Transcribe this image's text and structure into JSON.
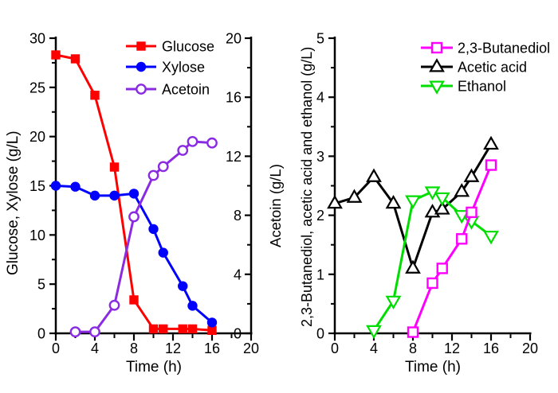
{
  "figure": {
    "background": "#ffffff",
    "axis_color": "#000000"
  },
  "chart_data": [
    {
      "type": "line",
      "panel": "left",
      "title": "",
      "xlabel": "Time (h)",
      "ylabel_left": "Glucose, Xylose (g/L)",
      "ylabel_right": "Acetoin (g/L)",
      "xlim": [
        0,
        20
      ],
      "xticks": [
        0,
        4,
        8,
        12,
        16,
        20
      ],
      "xminor_step": 2,
      "ylim_left": [
        0,
        30
      ],
      "yticks_left": [
        0,
        5,
        10,
        15,
        20,
        25,
        30
      ],
      "yminor_step_left": 2.5,
      "ylim_right": [
        0,
        20
      ],
      "yticks_right": [
        0,
        4,
        8,
        12,
        16,
        20
      ],
      "yminor_step_right": 2,
      "grid": false,
      "legend_position": "top-center-inside",
      "legend_items": [
        "Glucose",
        "Xylose",
        "Acetoin"
      ],
      "series": [
        {
          "name": "Glucose",
          "color": "#FF0000",
          "marker": "filled-square",
          "y_axis": "left",
          "x": [
            0,
            2,
            4,
            6,
            8,
            10,
            11,
            13,
            14,
            16
          ],
          "y": [
            28.3,
            27.9,
            24.2,
            16.9,
            3.4,
            0.45,
            0.45,
            0.45,
            0.45,
            0.3
          ]
        },
        {
          "name": "Xylose",
          "color": "#0000FF",
          "marker": "filled-circle",
          "y_axis": "left",
          "x": [
            0,
            2,
            4,
            6,
            8,
            10,
            11,
            13,
            14,
            16
          ],
          "y": [
            15.0,
            14.9,
            14.0,
            14.0,
            14.2,
            10.6,
            8.2,
            4.8,
            2.8,
            1.1
          ]
        },
        {
          "name": "Acetoin",
          "color": "#8A2BE2",
          "marker": "open-circle",
          "y_axis": "right",
          "x": [
            2,
            4,
            6,
            8,
            10,
            11,
            13,
            14,
            16
          ],
          "y": [
            0.1,
            0.1,
            1.9,
            7.9,
            10.7,
            11.3,
            12.4,
            13.0,
            12.9
          ]
        }
      ]
    },
    {
      "type": "line",
      "panel": "right",
      "title": "",
      "xlabel": "Time (h)",
      "ylabel": "2,3-Butanediol, acetic acid and ethanol (g/L)",
      "xlim": [
        0,
        20
      ],
      "xticks": [
        0,
        4,
        8,
        12,
        16,
        20
      ],
      "xminor_step": 2,
      "ylim": [
        0,
        5
      ],
      "yticks": [
        0,
        1,
        2,
        3,
        4,
        5
      ],
      "yminor_step": 0.5,
      "grid": false,
      "legend_position": "top-right-inside",
      "legend_items": [
        "2,3-Butanediol",
        "Acetic acid",
        "Ethanol"
      ],
      "series": [
        {
          "name": "2,3-Butanediol",
          "color": "#FF00FF",
          "marker": "open-square",
          "y_axis": "left",
          "x": [
            8,
            10,
            11,
            13,
            14,
            16
          ],
          "y": [
            0.02,
            0.85,
            1.1,
            1.6,
            2.05,
            2.85
          ]
        },
        {
          "name": "Acetic acid",
          "color": "#000000",
          "marker": "open-triangle-up",
          "y_axis": "left",
          "x": [
            0,
            2,
            4,
            6,
            8,
            10,
            11,
            13,
            14,
            16
          ],
          "y": [
            2.2,
            2.3,
            2.65,
            2.2,
            1.1,
            2.05,
            2.1,
            2.4,
            2.65,
            3.2
          ]
        },
        {
          "name": "Ethanol",
          "color": "#00DD00",
          "marker": "open-triangle-down",
          "y_axis": "left",
          "x": [
            4,
            6,
            8,
            10,
            11,
            13,
            14,
            16
          ],
          "y": [
            0.05,
            0.55,
            2.25,
            2.4,
            2.3,
            2.0,
            1.9,
            1.65
          ]
        }
      ]
    }
  ]
}
